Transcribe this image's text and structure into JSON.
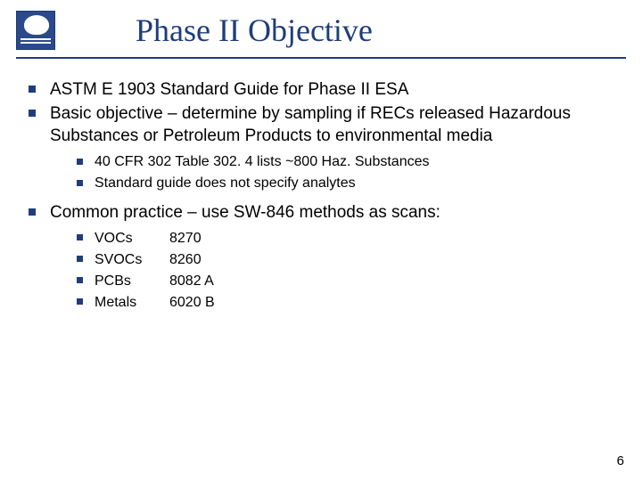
{
  "colors": {
    "title_color": "#1f3d7a",
    "bullet_color": "#1f3d7a",
    "text_color": "#000000",
    "background": "#ffffff",
    "rule_color": "#1f3d7a"
  },
  "typography": {
    "title_font": "Times New Roman",
    "body_font": "Verdana",
    "title_fontsize": 36,
    "lvl1_fontsize": 19,
    "lvl2_fontsize": 16,
    "lvl3_fontsize": 16
  },
  "title": "Phase II Objective",
  "bullets": {
    "b1": "ASTM E 1903 Standard Guide for Phase II ESA",
    "b2": "Basic objective – determine by sampling if RECs released Hazardous Substances or Petroleum Products to environmental media",
    "b2a": "40 CFR 302 Table 302. 4 lists ~800 Haz. Substances",
    "b2b": "Standard guide does not specify analytes",
    "b3": "Common practice – use SW-846 methods as scans:"
  },
  "methods": [
    {
      "label": "VOCs",
      "code": "8270"
    },
    {
      "label": "SVOCs",
      "code": "8260"
    },
    {
      "label": "PCBs",
      "code": "8082 A"
    },
    {
      "label": "Metals",
      "code": "6020 B"
    }
  ],
  "page_number": "6"
}
